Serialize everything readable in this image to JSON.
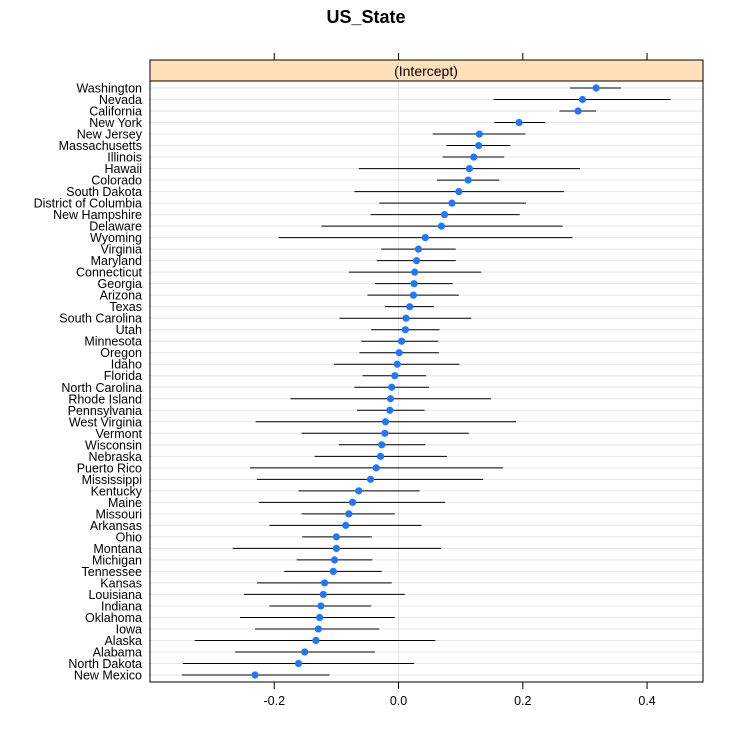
{
  "chart_data": {
    "type": "dotplot",
    "title": "US_State",
    "strip_label": "(Intercept)",
    "xlim": [
      -0.4,
      0.49
    ],
    "xticks": [
      -0.2,
      0.0,
      0.2,
      0.4
    ],
    "xtick_labels": [
      "-0.2",
      "0.0",
      "0.2",
      "0.4"
    ],
    "grid": true,
    "colors": {
      "point": "#1f77ff",
      "strip": "#ffe0b8",
      "line": "#000000",
      "grid": "#e6e6e6"
    },
    "categories": [
      "Washington",
      "Nevada",
      "California",
      "New York",
      "New Jersey",
      "Massachusetts",
      "Illinois",
      "Hawaii",
      "Colorado",
      "South Dakota",
      "District of Columbia",
      "New Hampshire",
      "Delaware",
      "Wyoming",
      "Virginia",
      "Maryland",
      "Connecticut",
      "Georgia",
      "Arizona",
      "Texas",
      "South Carolina",
      "Utah",
      "Minnesota",
      "Oregon",
      "Idaho",
      "Florida",
      "North Carolina",
      "Rhode Island",
      "Pennsylvania",
      "West Virginia",
      "Vermont",
      "Wisconsin",
      "Nebraska",
      "Puerto Rico",
      "Mississippi",
      "Kentucky",
      "Maine",
      "Missouri",
      "Arkansas",
      "Ohio",
      "Montana",
      "Michigan",
      "Tennessee",
      "Kansas",
      "Louisiana",
      "Indiana",
      "Oklahoma",
      "Iowa",
      "Alaska",
      "Alabama",
      "North Dakota",
      "New Mexico"
    ],
    "estimates": [
      0.318,
      0.296,
      0.289,
      0.194,
      0.13,
      0.129,
      0.121,
      0.114,
      0.112,
      0.097,
      0.086,
      0.074,
      0.069,
      0.043,
      0.032,
      0.029,
      0.026,
      0.025,
      0.024,
      0.018,
      0.012,
      0.011,
      0.005,
      0.001,
      -0.002,
      -0.006,
      -0.011,
      -0.013,
      -0.014,
      -0.021,
      -0.022,
      -0.027,
      -0.029,
      -0.036,
      -0.045,
      -0.064,
      -0.074,
      -0.08,
      -0.085,
      -0.1,
      -0.1,
      -0.103,
      -0.105,
      -0.119,
      -0.121,
      -0.125,
      -0.127,
      -0.129,
      -0.133,
      -0.151,
      -0.161,
      -0.231
    ],
    "lower": [
      0.276,
      0.153,
      0.259,
      0.154,
      0.055,
      0.077,
      0.071,
      -0.064,
      0.062,
      -0.071,
      -0.031,
      -0.045,
      -0.124,
      -0.193,
      -0.028,
      -0.035,
      -0.08,
      -0.038,
      -0.05,
      -0.022,
      -0.095,
      -0.044,
      -0.06,
      -0.063,
      -0.104,
      -0.058,
      -0.071,
      -0.174,
      -0.067,
      -0.23,
      -0.156,
      -0.096,
      -0.135,
      -0.239,
      -0.228,
      -0.161,
      -0.225,
      -0.156,
      -0.208,
      -0.155,
      -0.267,
      -0.164,
      -0.184,
      -0.228,
      -0.249,
      -0.208,
      -0.255,
      -0.231,
      -0.328,
      -0.263,
      -0.347,
      -0.349
    ],
    "upper": [
      0.358,
      0.438,
      0.318,
      0.236,
      0.204,
      0.18,
      0.17,
      0.292,
      0.162,
      0.266,
      0.205,
      0.195,
      0.264,
      0.28,
      0.092,
      0.092,
      0.133,
      0.087,
      0.097,
      0.057,
      0.117,
      0.066,
      0.064,
      0.065,
      0.098,
      0.044,
      0.049,
      0.149,
      0.042,
      0.189,
      0.113,
      0.043,
      0.078,
      0.168,
      0.136,
      0.034,
      0.075,
      -0.006,
      0.037,
      -0.043,
      0.068,
      -0.042,
      -0.027,
      -0.011,
      0.01,
      -0.044,
      -0.006,
      -0.031,
      0.059,
      -0.038,
      0.025,
      -0.111
    ]
  }
}
